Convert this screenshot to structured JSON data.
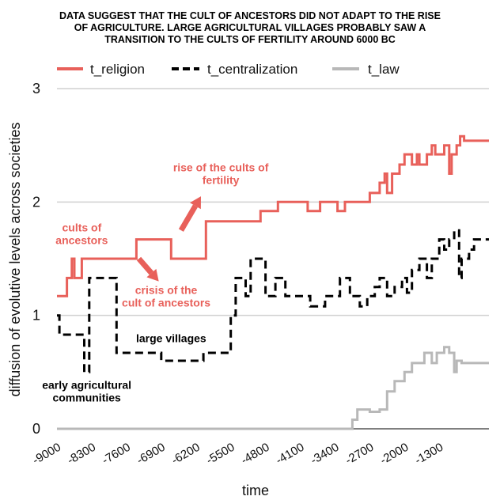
{
  "chart_data": {
    "type": "line",
    "title_lines": [
      "DATA SUGGEST THAT THE CULT OF ANCESTORS DID NOT ADAPT TO THE RISE",
      "OF AGRICULTURE. LARGE AGRICULTURAL VILLAGES PROBABLY SAW A",
      "TRANSITION TO THE CULTS OF FERTILITY AROUND 6000 BC"
    ],
    "xlabel": "time",
    "ylabel": "diffusion of evolutive levels across societies",
    "xlim": [
      -9000,
      -300
    ],
    "ylim": [
      0,
      3
    ],
    "yticks": [
      0,
      1,
      2,
      3
    ],
    "xticks": [
      -9000,
      -8300,
      -7600,
      -6900,
      -6200,
      -5500,
      -4800,
      -4100,
      -3400,
      -2700,
      -2000,
      -1300
    ],
    "grid": "horizontal",
    "legend_position": "top",
    "colors": {
      "t_religion": "#e8605a",
      "t_centralization": "#000000",
      "t_law": "#b8b8b8"
    },
    "series": [
      {
        "name": "t_religion",
        "style": "solid",
        "points": [
          [
            -9000,
            1.17
          ],
          [
            -8800,
            1.17
          ],
          [
            -8800,
            1.33
          ],
          [
            -8700,
            1.33
          ],
          [
            -8700,
            1.5
          ],
          [
            -8650,
            1.5
          ],
          [
            -8650,
            1.33
          ],
          [
            -8500,
            1.33
          ],
          [
            -8500,
            1.5
          ],
          [
            -7400,
            1.5
          ],
          [
            -7400,
            1.67
          ],
          [
            -6700,
            1.67
          ],
          [
            -6700,
            1.5
          ],
          [
            -6000,
            1.5
          ],
          [
            -6000,
            1.83
          ],
          [
            -4900,
            1.83
          ],
          [
            -4900,
            1.92
          ],
          [
            -4550,
            1.92
          ],
          [
            -4550,
            2.0
          ],
          [
            -3950,
            2.0
          ],
          [
            -3950,
            1.92
          ],
          [
            -3700,
            1.92
          ],
          [
            -3700,
            2.0
          ],
          [
            -3350,
            2.0
          ],
          [
            -3350,
            1.92
          ],
          [
            -3200,
            1.92
          ],
          [
            -3200,
            2.0
          ],
          [
            -2700,
            2.0
          ],
          [
            -2700,
            2.08
          ],
          [
            -2500,
            2.08
          ],
          [
            -2500,
            2.17
          ],
          [
            -2400,
            2.17
          ],
          [
            -2400,
            2.25
          ],
          [
            -2350,
            2.25
          ],
          [
            -2350,
            2.08
          ],
          [
            -2250,
            2.08
          ],
          [
            -2250,
            2.25
          ],
          [
            -2100,
            2.25
          ],
          [
            -2100,
            2.33
          ],
          [
            -2000,
            2.33
          ],
          [
            -2000,
            2.42
          ],
          [
            -1850,
            2.42
          ],
          [
            -1850,
            2.33
          ],
          [
            -1750,
            2.33
          ],
          [
            -1750,
            2.42
          ],
          [
            -1700,
            2.42
          ],
          [
            -1700,
            2.33
          ],
          [
            -1550,
            2.33
          ],
          [
            -1550,
            2.42
          ],
          [
            -1450,
            2.42
          ],
          [
            -1450,
            2.5
          ],
          [
            -1380,
            2.5
          ],
          [
            -1380,
            2.42
          ],
          [
            -1200,
            2.42
          ],
          [
            -1200,
            2.5
          ],
          [
            -1100,
            2.5
          ],
          [
            -1100,
            2.25
          ],
          [
            -1050,
            2.25
          ],
          [
            -1050,
            2.42
          ],
          [
            -950,
            2.42
          ],
          [
            -950,
            2.5
          ],
          [
            -880,
            2.5
          ],
          [
            -880,
            2.58
          ],
          [
            -800,
            2.58
          ],
          [
            -800,
            2.54
          ],
          [
            -300,
            2.54
          ]
        ]
      },
      {
        "name": "t_centralization",
        "style": "dashed",
        "points": [
          [
            -9000,
            1.0
          ],
          [
            -8950,
            1.0
          ],
          [
            -8950,
            0.83
          ],
          [
            -8450,
            0.83
          ],
          [
            -8450,
            0.5
          ],
          [
            -8350,
            0.5
          ],
          [
            -8350,
            1.33
          ],
          [
            -7800,
            1.33
          ],
          [
            -7800,
            0.67
          ],
          [
            -6900,
            0.67
          ],
          [
            -6900,
            0.6
          ],
          [
            -6050,
            0.6
          ],
          [
            -6050,
            0.67
          ],
          [
            -5500,
            0.67
          ],
          [
            -5500,
            1.0
          ],
          [
            -5400,
            1.0
          ],
          [
            -5400,
            1.33
          ],
          [
            -5200,
            1.33
          ],
          [
            -5200,
            1.17
          ],
          [
            -5100,
            1.17
          ],
          [
            -5100,
            1.5
          ],
          [
            -4800,
            1.5
          ],
          [
            -4800,
            1.17
          ],
          [
            -4600,
            1.17
          ],
          [
            -4600,
            1.33
          ],
          [
            -4400,
            1.33
          ],
          [
            -4400,
            1.17
          ],
          [
            -3900,
            1.17
          ],
          [
            -3900,
            1.08
          ],
          [
            -3600,
            1.08
          ],
          [
            -3600,
            1.17
          ],
          [
            -3300,
            1.17
          ],
          [
            -3300,
            1.33
          ],
          [
            -3100,
            1.33
          ],
          [
            -3100,
            1.17
          ],
          [
            -2900,
            1.17
          ],
          [
            -2900,
            1.08
          ],
          [
            -2750,
            1.08
          ],
          [
            -2750,
            1.17
          ],
          [
            -2600,
            1.17
          ],
          [
            -2600,
            1.25
          ],
          [
            -2500,
            1.25
          ],
          [
            -2500,
            1.33
          ],
          [
            -2350,
            1.33
          ],
          [
            -2350,
            1.17
          ],
          [
            -2200,
            1.17
          ],
          [
            -2200,
            1.25
          ],
          [
            -2050,
            1.25
          ],
          [
            -2050,
            1.33
          ],
          [
            -1950,
            1.33
          ],
          [
            -1950,
            1.2
          ],
          [
            -1850,
            1.2
          ],
          [
            -1850,
            1.4
          ],
          [
            -1700,
            1.4
          ],
          [
            -1700,
            1.5
          ],
          [
            -1550,
            1.5
          ],
          [
            -1550,
            1.33
          ],
          [
            -1450,
            1.33
          ],
          [
            -1450,
            1.5
          ],
          [
            -1300,
            1.5
          ],
          [
            -1300,
            1.67
          ],
          [
            -1200,
            1.67
          ],
          [
            -1200,
            1.58
          ],
          [
            -1100,
            1.58
          ],
          [
            -1100,
            1.67
          ],
          [
            -1000,
            1.67
          ],
          [
            -1000,
            1.75
          ],
          [
            -900,
            1.75
          ],
          [
            -900,
            1.33
          ],
          [
            -850,
            1.33
          ],
          [
            -850,
            1.5
          ],
          [
            -700,
            1.5
          ],
          [
            -700,
            1.58
          ],
          [
            -600,
            1.58
          ],
          [
            -600,
            1.67
          ],
          [
            -300,
            1.67
          ]
        ]
      },
      {
        "name": "t_law",
        "style": "solid",
        "points": [
          [
            -9000,
            0.0
          ],
          [
            -3050,
            0.0
          ],
          [
            -3050,
            0.08
          ],
          [
            -2950,
            0.08
          ],
          [
            -2950,
            0.17
          ],
          [
            -2700,
            0.17
          ],
          [
            -2700,
            0.15
          ],
          [
            -2500,
            0.15
          ],
          [
            -2500,
            0.17
          ],
          [
            -2350,
            0.17
          ],
          [
            -2350,
            0.33
          ],
          [
            -2200,
            0.33
          ],
          [
            -2200,
            0.42
          ],
          [
            -2000,
            0.42
          ],
          [
            -2000,
            0.5
          ],
          [
            -1850,
            0.5
          ],
          [
            -1850,
            0.58
          ],
          [
            -1600,
            0.58
          ],
          [
            -1600,
            0.67
          ],
          [
            -1450,
            0.67
          ],
          [
            -1450,
            0.58
          ],
          [
            -1350,
            0.58
          ],
          [
            -1350,
            0.67
          ],
          [
            -1200,
            0.67
          ],
          [
            -1200,
            0.72
          ],
          [
            -1100,
            0.72
          ],
          [
            -1100,
            0.67
          ],
          [
            -1000,
            0.67
          ],
          [
            -1000,
            0.5
          ],
          [
            -950,
            0.5
          ],
          [
            -950,
            0.6
          ],
          [
            -850,
            0.6
          ],
          [
            -850,
            0.58
          ],
          [
            -300,
            0.58
          ]
        ]
      }
    ],
    "annotations": [
      {
        "text_lines": [
          "rise of the cults of",
          "fertility"
        ],
        "color": "#e8605a",
        "x": -5700,
        "y": 2.25
      },
      {
        "text_lines": [
          "cults of",
          "ancestors"
        ],
        "color": "#e8605a",
        "x": -8500,
        "y": 1.72
      },
      {
        "text_lines": [
          "crisis of the",
          "cult of ancestors"
        ],
        "color": "#e8605a",
        "x": -6800,
        "y": 1.17
      },
      {
        "text_lines": [
          "large villages"
        ],
        "color": "#000000",
        "x": -6700,
        "y": 0.8
      },
      {
        "text_lines": [
          "early agricultural",
          "communities"
        ],
        "color": "#000000",
        "x": -8400,
        "y": 0.33
      }
    ],
    "arrows": [
      {
        "color": "#e8605a",
        "from": [
          -6500,
          1.75
        ],
        "to": [
          -6100,
          2.05
        ]
      },
      {
        "color": "#e8605a",
        "from": [
          -7350,
          1.5
        ],
        "to": [
          -6950,
          1.3
        ]
      }
    ]
  }
}
